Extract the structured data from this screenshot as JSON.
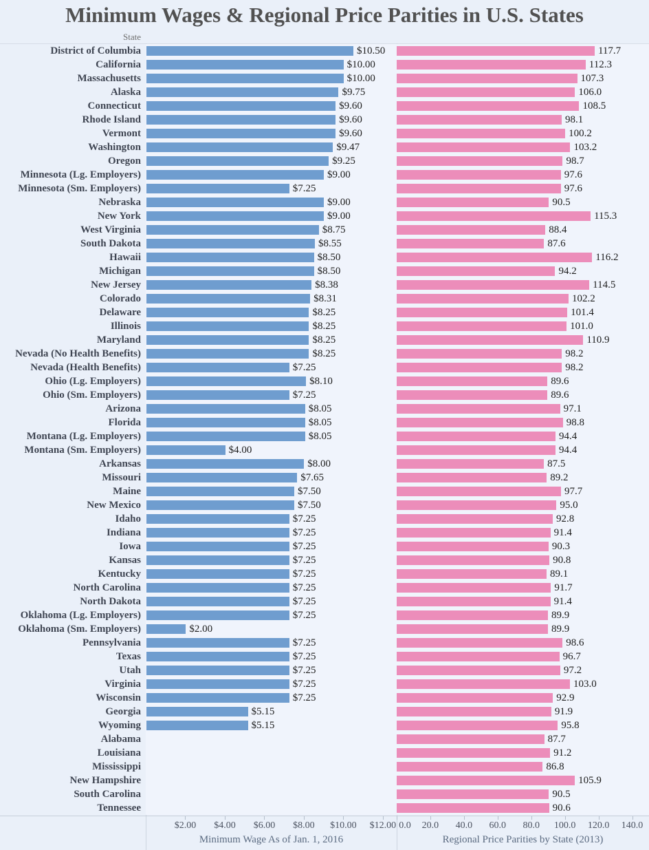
{
  "title": "Minimum Wages & Regional Price Parities in U.S. States",
  "column_header": "State",
  "colors": {
    "wage_bar": "#6f9dcf",
    "rpp_bar": "#ec8dba",
    "background": "#eaf0f9",
    "panel_background": "#f0f4fc",
    "grid_line": "#ccd4df",
    "title_text": "#515151",
    "state_label_text": "#3f4552",
    "value_label_text": "#1c1c1c",
    "tick_label_text": "#4b5260",
    "axis_title_text": "#5a6a80"
  },
  "chart_data": {
    "type": "bar",
    "orientation": "horizontal",
    "row_header": "State",
    "grid": false,
    "legend": false,
    "categories": [
      "District of Columbia",
      "California",
      "Massachusetts",
      "Alaska",
      "Connecticut",
      "Rhode Island",
      "Vermont",
      "Washington",
      "Oregon",
      "Minnesota (Lg. Employers)",
      "Minnesota (Sm. Employers)",
      "Nebraska",
      "New York",
      "West Virginia",
      "South Dakota",
      "Hawaii",
      "Michigan",
      "New Jersey",
      "Colorado",
      "Delaware",
      "Illinois",
      "Maryland",
      "Nevada (No Health Benefits)",
      "Nevada (Health Benefits)",
      "Ohio (Lg. Employers)",
      "Ohio (Sm. Employers)",
      "Arizona",
      "Florida",
      "Montana (Lg. Employers)",
      "Montana (Sm. Employers)",
      "Arkansas",
      "Missouri",
      "Maine",
      "New Mexico",
      "Idaho",
      "Indiana",
      "Iowa",
      "Kansas",
      "Kentucky",
      "North Carolina",
      "North Dakota",
      "Oklahoma (Lg. Employers)",
      "Oklahoma (Sm. Employers)",
      "Pennsylvania",
      "Texas",
      "Utah",
      "Virginia",
      "Wisconsin",
      "Georgia",
      "Wyoming",
      "Alabama",
      "Louisiana",
      "Mississippi",
      "New Hampshire",
      "South Carolina",
      "Tennessee"
    ],
    "series": [
      {
        "name": "Minimum Wage As of Jan. 1, 2016",
        "values": [
          10.5,
          10.0,
          10.0,
          9.75,
          9.6,
          9.6,
          9.6,
          9.47,
          9.25,
          9.0,
          7.25,
          9.0,
          9.0,
          8.75,
          8.55,
          8.5,
          8.5,
          8.38,
          8.31,
          8.25,
          8.25,
          8.25,
          8.25,
          7.25,
          8.1,
          7.25,
          8.05,
          8.05,
          8.05,
          4.0,
          8.0,
          7.65,
          7.5,
          7.5,
          7.25,
          7.25,
          7.25,
          7.25,
          7.25,
          7.25,
          7.25,
          7.25,
          2.0,
          7.25,
          7.25,
          7.25,
          7.25,
          7.25,
          5.15,
          5.15,
          null,
          null,
          null,
          null,
          null,
          null
        ],
        "labels": [
          "$10.50",
          "$10.00",
          "$10.00",
          "$9.75",
          "$9.60",
          "$9.60",
          "$9.60",
          "$9.47",
          "$9.25",
          "$9.00",
          "$7.25",
          "$9.00",
          "$9.00",
          "$8.75",
          "$8.55",
          "$8.50",
          "$8.50",
          "$8.38",
          "$8.31",
          "$8.25",
          "$8.25",
          "$8.25",
          "$8.25",
          "$7.25",
          "$8.10",
          "$7.25",
          "$8.05",
          "$8.05",
          "$8.05",
          "$4.00",
          "$8.00",
          "$7.65",
          "$7.50",
          "$7.50",
          "$7.25",
          "$7.25",
          "$7.25",
          "$7.25",
          "$7.25",
          "$7.25",
          "$7.25",
          "$7.25",
          "$2.00",
          "$7.25",
          "$7.25",
          "$7.25",
          "$7.25",
          "$7.25",
          "$5.15",
          "$5.15",
          "",
          "",
          "",
          "",
          "",
          ""
        ],
        "axis": {
          "tick_values": [
            2,
            4,
            6,
            8,
            10,
            12
          ],
          "tick_labels": [
            "$2.00",
            "$4.00",
            "$6.00",
            "$8.00",
            "$10.00",
            "$12.00"
          ],
          "domain": [
            0,
            12.7
          ]
        }
      },
      {
        "name": "Regional Price Parities by State (2013)",
        "values": [
          117.7,
          112.3,
          107.3,
          106.0,
          108.5,
          98.1,
          100.2,
          103.2,
          98.7,
          97.6,
          97.6,
          90.5,
          115.3,
          88.4,
          87.6,
          116.2,
          94.2,
          114.5,
          102.2,
          101.4,
          101.0,
          110.9,
          98.2,
          98.2,
          89.6,
          89.6,
          97.1,
          98.8,
          94.4,
          94.4,
          87.5,
          89.2,
          97.7,
          95.0,
          92.8,
          91.4,
          90.3,
          90.8,
          89.1,
          91.7,
          91.4,
          89.9,
          89.9,
          98.6,
          96.7,
          97.2,
          103.0,
          92.9,
          91.9,
          95.8,
          87.7,
          91.2,
          86.8,
          105.9,
          90.5,
          90.6
        ],
        "labels": [
          "117.7",
          "112.3",
          "107.3",
          "106.0",
          "108.5",
          "98.1",
          "100.2",
          "103.2",
          "98.7",
          "97.6",
          "97.6",
          "90.5",
          "115.3",
          "88.4",
          "87.6",
          "116.2",
          "94.2",
          "114.5",
          "102.2",
          "101.4",
          "101.0",
          "110.9",
          "98.2",
          "98.2",
          "89.6",
          "89.6",
          "97.1",
          "98.8",
          "94.4",
          "94.4",
          "87.5",
          "89.2",
          "97.7",
          "95.0",
          "92.8",
          "91.4",
          "90.3",
          "90.8",
          "89.1",
          "91.7",
          "91.4",
          "89.9",
          "89.9",
          "98.6",
          "96.7",
          "97.2",
          "103.0",
          "92.9",
          "91.9",
          "95.8",
          "87.7",
          "91.2",
          "86.8",
          "105.9",
          "90.5",
          "90.6"
        ],
        "axis": {
          "tick_values": [
            0,
            20,
            40,
            60,
            80,
            100,
            120,
            140
          ],
          "tick_labels": [
            "0.0",
            "20.0",
            "40.0",
            "60.0",
            "80.0",
            "100.0",
            "120.0",
            "140.0"
          ],
          "domain": [
            0,
            150
          ]
        }
      }
    ]
  }
}
